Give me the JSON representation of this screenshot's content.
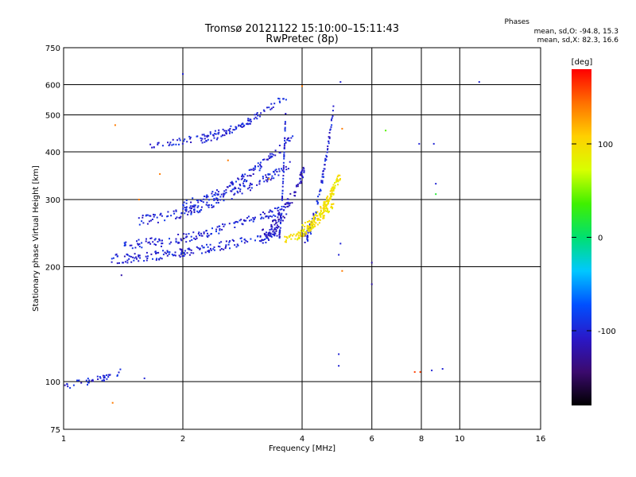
{
  "chart_data": {
    "type": "scatter",
    "title": "Tromsø 20121122 15:10:00–15:11:43",
    "subtitle": "RwPretec (8p)",
    "xlabel": "Frequency [MHz]",
    "ylabel": "Stationary phase Virtual Height [km]",
    "x_scale": "log",
    "y_scale": "log",
    "xlim": [
      1,
      16
    ],
    "ylim": [
      75,
      750
    ],
    "x_ticks": [
      1,
      2,
      4,
      6,
      8,
      10,
      16
    ],
    "x_tick_labels": [
      "1",
      "2",
      "4",
      "6",
      "8",
      "10",
      "16"
    ],
    "y_ticks": [
      75,
      100,
      200,
      300,
      400,
      500,
      600,
      750
    ],
    "y_tick_labels": [
      "75",
      "100",
      "200",
      "300",
      "400",
      "500",
      "600",
      "750"
    ],
    "grid": true,
    "phase_stats": {
      "title": "Phases",
      "line_o": "mean, sd,O: -94.8, 15.3",
      "line_x": "mean, sd,X:  82.3, 16.6"
    },
    "colorbar": {
      "label": "[deg]",
      "range": [
        -180,
        180
      ],
      "ticks": [
        100,
        0,
        -100
      ],
      "tick_labels": [
        "100",
        "0",
        "-100"
      ],
      "colors": [
        "#000000",
        "#3b0a6e",
        "#2a18c8",
        "#0050ff",
        "#00c8ff",
        "#00e070",
        "#40f000",
        "#d8ff00",
        "#ffd000",
        "#ff7000",
        "#ff0000"
      ]
    },
    "series": [
      {
        "segments": [
          {
            "f0": 1.32,
            "f1": 3.55,
            "h0": 210,
            "h1": 245,
            "n": 170,
            "phase": -100,
            "spread": 6
          },
          {
            "f0": 1.42,
            "f1": 3.65,
            "h0": 228,
            "h1": 285,
            "n": 150,
            "phase": -100,
            "spread": 7
          },
          {
            "f0": 1.55,
            "f1": 3.75,
            "h0": 265,
            "h1": 370,
            "n": 150,
            "phase": -100,
            "spread": 8
          },
          {
            "f0": 2.0,
            "f1": 3.8,
            "h0": 290,
            "h1": 440,
            "n": 130,
            "phase": -100,
            "spread": 10
          },
          {
            "f0": 1.65,
            "f1": 3.0,
            "h0": 418,
            "h1": 480,
            "n": 70,
            "phase": -100,
            "spread": 8
          },
          {
            "f0": 2.2,
            "f1": 3.6,
            "h0": 430,
            "h1": 560,
            "n": 60,
            "phase": -100,
            "spread": 10
          },
          {
            "f0": 3.15,
            "f1": 4.05,
            "h0": 240,
            "h1": 360,
            "n": 110,
            "phase": -110,
            "spread": 12
          },
          {
            "f0": 3.5,
            "f1": 3.65,
            "h0": 240,
            "h1": 580,
            "n": 60,
            "phase": -100,
            "spread": 6
          },
          {
            "f0": 4.05,
            "f1": 4.8,
            "h0": 235,
            "h1": 520,
            "n": 90,
            "phase": -100,
            "spread": 10
          },
          {
            "f0": 3.6,
            "f1": 4.8,
            "h0": 235,
            "h1": 290,
            "n": 90,
            "phase": 95,
            "spread": 6
          },
          {
            "f0": 4.0,
            "f1": 5.0,
            "h0": 250,
            "h1": 350,
            "n": 140,
            "phase": 95,
            "spread": 10
          },
          {
            "f0": 1.0,
            "f1": 1.4,
            "h0": 98,
            "h1": 106,
            "n": 40,
            "phase": -100,
            "spread": 2
          }
        ],
        "scatter": [
          {
            "f": 2.0,
            "h": 640,
            "p": -100
          },
          {
            "f": 1.35,
            "h": 470,
            "p": 140
          },
          {
            "f": 1.4,
            "h": 190,
            "p": -120
          },
          {
            "f": 1.45,
            "h": 205,
            "p": -100
          },
          {
            "f": 1.6,
            "h": 102,
            "p": -100
          },
          {
            "f": 1.33,
            "h": 88,
            "p": 140
          },
          {
            "f": 1.75,
            "h": 350,
            "p": 140
          },
          {
            "f": 1.55,
            "h": 300,
            "p": 140
          },
          {
            "f": 5.0,
            "h": 610,
            "p": -100
          },
          {
            "f": 5.05,
            "h": 460,
            "p": 140
          },
          {
            "f": 5.0,
            "h": 230,
            "p": -100
          },
          {
            "f": 4.95,
            "h": 215,
            "p": -100
          },
          {
            "f": 5.05,
            "h": 195,
            "p": 140
          },
          {
            "f": 4.95,
            "h": 118,
            "p": -100
          },
          {
            "f": 4.95,
            "h": 110,
            "p": -100
          },
          {
            "f": 6.0,
            "h": 205,
            "p": -120
          },
          {
            "f": 6.0,
            "h": 180,
            "p": -120
          },
          {
            "f": 6.5,
            "h": 455,
            "p": 40
          },
          {
            "f": 7.9,
            "h": 420,
            "p": -100
          },
          {
            "f": 8.6,
            "h": 420,
            "p": -100
          },
          {
            "f": 8.7,
            "h": 330,
            "p": -100
          },
          {
            "f": 8.7,
            "h": 310,
            "p": 20
          },
          {
            "f": 7.7,
            "h": 106,
            "p": 160
          },
          {
            "f": 7.95,
            "h": 106,
            "p": 160
          },
          {
            "f": 8.5,
            "h": 107,
            "p": -100
          },
          {
            "f": 9.05,
            "h": 108,
            "p": -100
          },
          {
            "f": 11.2,
            "h": 610,
            "p": -100
          },
          {
            "f": 4.0,
            "h": 595,
            "p": 140
          },
          {
            "f": 2.6,
            "h": 380,
            "p": 140
          },
          {
            "f": 3.3,
            "h": 340,
            "p": 120
          }
        ]
      }
    ]
  }
}
